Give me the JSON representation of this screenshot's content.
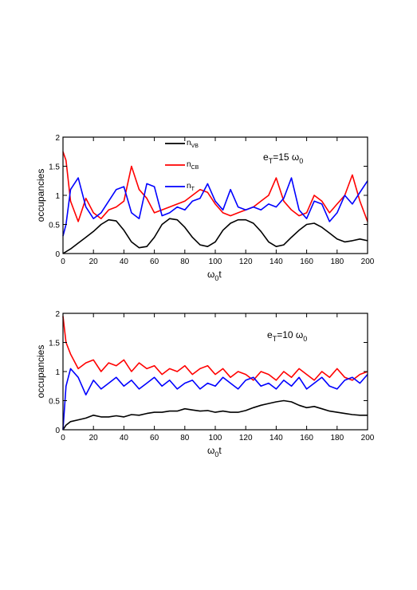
{
  "chart_data": [
    {
      "type": "line",
      "xlabel": "ω0t",
      "ylabel": "occupancies",
      "xlim": [
        0,
        200
      ],
      "ylim": [
        0,
        2
      ],
      "xticks": [
        0,
        20,
        40,
        60,
        80,
        100,
        120,
        140,
        160,
        180,
        200
      ],
      "yticks": [
        0,
        0.5,
        1,
        1.5,
        2
      ],
      "annotation": "eT=15 ω0",
      "legend": {
        "placement": "top-center",
        "entries": [
          "nVB",
          "nCB",
          "nT"
        ]
      },
      "grid": false,
      "colors": {
        "nVB": "#000000",
        "nCB": "#ff0000",
        "nT": "#0000ff"
      },
      "series": [
        {
          "name": "nVB",
          "x": [
            0,
            5,
            10,
            15,
            20,
            25,
            30,
            35,
            40,
            45,
            50,
            55,
            60,
            65,
            70,
            75,
            80,
            85,
            90,
            95,
            100,
            105,
            110,
            115,
            120,
            125,
            130,
            135,
            140,
            145,
            150,
            155,
            160,
            165,
            170,
            175,
            180,
            185,
            190,
            195,
            200
          ],
          "values": [
            0,
            0.08,
            0.18,
            0.28,
            0.38,
            0.5,
            0.58,
            0.56,
            0.4,
            0.2,
            0.1,
            0.12,
            0.28,
            0.5,
            0.6,
            0.58,
            0.45,
            0.28,
            0.15,
            0.12,
            0.2,
            0.4,
            0.52,
            0.58,
            0.58,
            0.52,
            0.38,
            0.2,
            0.12,
            0.15,
            0.28,
            0.4,
            0.5,
            0.52,
            0.45,
            0.35,
            0.25,
            0.2,
            0.22,
            0.25,
            0.22
          ]
        },
        {
          "name": "nCB",
          "x": [
            0,
            2,
            5,
            10,
            15,
            20,
            25,
            30,
            35,
            40,
            45,
            50,
            55,
            60,
            65,
            70,
            75,
            80,
            85,
            90,
            95,
            100,
            105,
            110,
            115,
            120,
            125,
            130,
            135,
            140,
            145,
            150,
            155,
            160,
            165,
            170,
            175,
            180,
            185,
            190,
            195,
            200
          ],
          "values": [
            1.75,
            1.6,
            0.9,
            0.55,
            0.95,
            0.7,
            0.6,
            0.75,
            0.8,
            0.9,
            1.5,
            1.1,
            0.95,
            0.7,
            0.75,
            0.8,
            0.85,
            0.9,
            1.0,
            1.1,
            1.05,
            0.85,
            0.7,
            0.65,
            0.7,
            0.75,
            0.8,
            0.9,
            1.0,
            1.3,
            0.9,
            0.75,
            0.65,
            0.7,
            1.0,
            0.9,
            0.7,
            0.85,
            1.0,
            1.35,
            0.9,
            0.55
          ]
        },
        {
          "name": "nT",
          "x": [
            0,
            2,
            5,
            10,
            15,
            20,
            25,
            30,
            35,
            40,
            45,
            50,
            55,
            60,
            65,
            70,
            75,
            80,
            85,
            90,
            95,
            100,
            105,
            110,
            115,
            120,
            125,
            130,
            135,
            140,
            145,
            150,
            155,
            160,
            165,
            170,
            175,
            180,
            185,
            190,
            195,
            200
          ],
          "values": [
            0.3,
            0.5,
            1.1,
            1.3,
            0.8,
            0.6,
            0.7,
            0.9,
            1.1,
            1.15,
            0.7,
            0.6,
            1.2,
            1.15,
            0.65,
            0.7,
            0.8,
            0.75,
            0.9,
            0.95,
            1.2,
            0.9,
            0.75,
            1.1,
            0.8,
            0.75,
            0.8,
            0.75,
            0.85,
            0.8,
            0.95,
            1.3,
            0.75,
            0.6,
            0.9,
            0.85,
            0.55,
            0.7,
            1.0,
            0.85,
            1.05,
            1.25
          ]
        }
      ]
    },
    {
      "type": "line",
      "xlabel": "ω0t",
      "ylabel": "occupancies",
      "xlim": [
        0,
        200
      ],
      "ylim": [
        0,
        2
      ],
      "xticks": [
        0,
        20,
        40,
        60,
        80,
        100,
        120,
        140,
        160,
        180,
        200
      ],
      "yticks": [
        0,
        0.5,
        1,
        1.5,
        2
      ],
      "annotation": "eT=10 ω0",
      "grid": false,
      "colors": {
        "nVB": "#000000",
        "nCB": "#ff0000",
        "nT": "#0000ff"
      },
      "series": [
        {
          "x": [
            0,
            2,
            5,
            10,
            15,
            20,
            25,
            30,
            35,
            40,
            45,
            50,
            55,
            60,
            65,
            70,
            75,
            80,
            85,
            90,
            95,
            100,
            105,
            110,
            115,
            120,
            125,
            130,
            135,
            140,
            145,
            150,
            155,
            160,
            165,
            170,
            175,
            180,
            185,
            190,
            195,
            200
          ],
          "values": [
            0,
            0.08,
            0.14,
            0.17,
            0.2,
            0.25,
            0.22,
            0.22,
            0.24,
            0.22,
            0.26,
            0.25,
            0.28,
            0.3,
            0.3,
            0.32,
            0.32,
            0.36,
            0.34,
            0.32,
            0.33,
            0.3,
            0.32,
            0.3,
            0.3,
            0.33,
            0.38,
            0.42,
            0.45,
            0.48,
            0.5,
            0.48,
            0.42,
            0.38,
            0.4,
            0.36,
            0.32,
            0.3,
            0.28,
            0.26,
            0.25,
            0.25
          ]
        },
        {
          "x": [
            0,
            2,
            5,
            10,
            15,
            20,
            25,
            30,
            35,
            40,
            45,
            50,
            55,
            60,
            65,
            70,
            75,
            80,
            85,
            90,
            95,
            100,
            105,
            110,
            115,
            120,
            125,
            130,
            135,
            140,
            145,
            150,
            155,
            160,
            165,
            170,
            175,
            180,
            185,
            190,
            195,
            200
          ],
          "values": [
            1.95,
            1.5,
            1.3,
            1.05,
            1.15,
            1.2,
            1.0,
            1.15,
            1.1,
            1.2,
            1.0,
            1.15,
            1.05,
            1.1,
            0.95,
            1.05,
            1.0,
            1.1,
            0.95,
            1.05,
            1.1,
            0.95,
            1.05,
            0.9,
            1.0,
            0.95,
            0.85,
            1.0,
            0.95,
            0.85,
            1.0,
            0.9,
            1.05,
            0.95,
            0.85,
            1.0,
            0.9,
            1.05,
            0.9,
            0.85,
            0.95,
            1.0
          ]
        },
        {
          "x": [
            0,
            2,
            5,
            10,
            15,
            20,
            25,
            30,
            35,
            40,
            45,
            50,
            55,
            60,
            65,
            70,
            75,
            80,
            85,
            90,
            95,
            100,
            105,
            110,
            115,
            120,
            125,
            130,
            135,
            140,
            145,
            150,
            155,
            160,
            165,
            170,
            175,
            180,
            185,
            190,
            195,
            200
          ],
          "values": [
            0,
            0.75,
            1.05,
            0.9,
            0.6,
            0.85,
            0.7,
            0.8,
            0.9,
            0.75,
            0.85,
            0.7,
            0.8,
            0.9,
            0.75,
            0.85,
            0.7,
            0.8,
            0.85,
            0.7,
            0.8,
            0.75,
            0.9,
            0.8,
            0.7,
            0.85,
            0.9,
            0.75,
            0.8,
            0.7,
            0.85,
            0.75,
            0.9,
            0.7,
            0.8,
            0.9,
            0.75,
            0.7,
            0.85,
            0.9,
            0.8,
            0.95
          ]
        }
      ]
    }
  ]
}
